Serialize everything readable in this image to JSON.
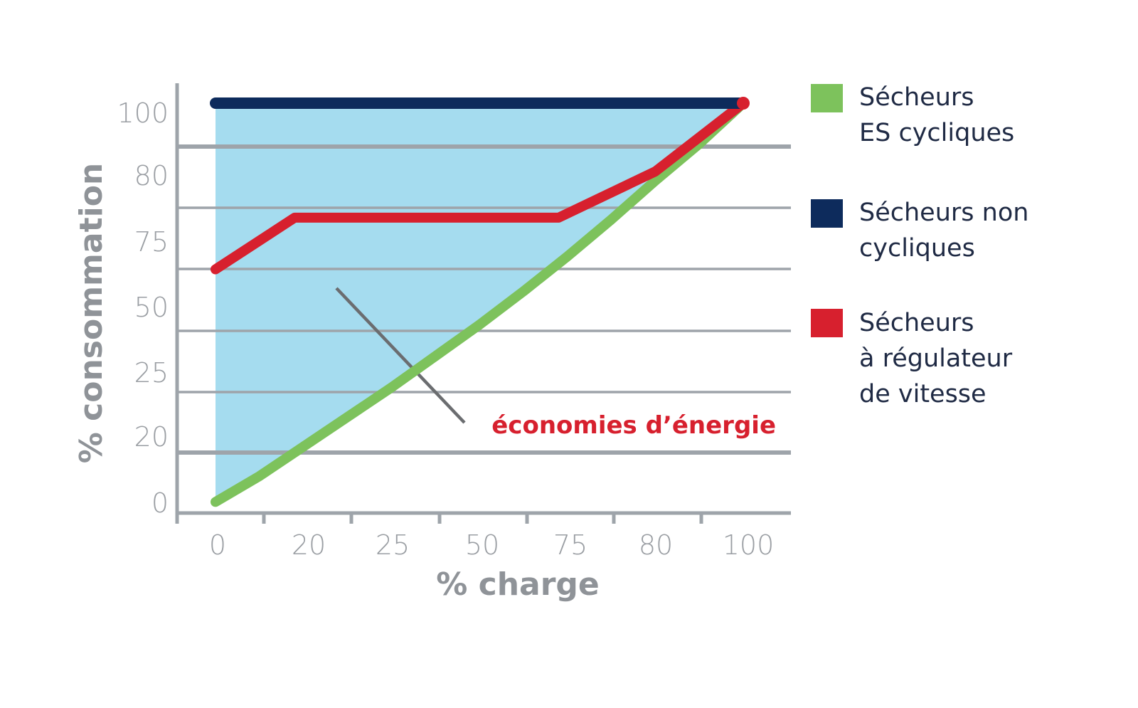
{
  "chart_data": {
    "type": "line",
    "xlabel": "% charge",
    "ylabel": "% consommation",
    "categories": [
      "0",
      "20",
      "25",
      "50",
      "75",
      "80",
      "100"
    ],
    "y_ticks": [
      "0",
      "20",
      "25",
      "50",
      "75",
      "80",
      "100"
    ],
    "grid": "horizontal",
    "legend_position": "right",
    "series": [
      {
        "name": "Sécheurs ES cycliques",
        "color": "#7dc25c",
        "x": [
          0,
          0.5,
          1,
          1.5,
          2,
          2.5,
          3,
          3.5,
          4,
          4.5,
          5,
          5.5,
          6
        ],
        "y": [
          0.3,
          1.0,
          1.8,
          2.6,
          3.4,
          4.25,
          5.1,
          6.0,
          6.95,
          7.95,
          9.0,
          10.0,
          11.1
        ]
      },
      {
        "name": "Sécheurs non cycliques",
        "color": "#0d2b5c",
        "x": [
          0,
          6
        ],
        "y": [
          11.1,
          11.1
        ]
      },
      {
        "name": "Sécheurs à régulateur de vitesse",
        "color": "#d7202e",
        "x": [
          0,
          0.9,
          3.9,
          5.0,
          6.0
        ],
        "y": [
          6.6,
          8.0,
          8.0,
          9.25,
          11.1
        ]
      }
    ],
    "shaded_area": {
      "label": "économies d'énergie",
      "label_color": "#d7202e",
      "fill": "#a5dcef",
      "between": [
        "Sécheurs non cycliques",
        "Sécheurs ES cycliques"
      ]
    },
    "annotations": [
      {
        "text": "économies d’énergie",
        "color": "#d7202e"
      }
    ]
  },
  "legend": [
    {
      "lines": [
        "Sécheurs",
        "ES cycliques"
      ],
      "color": "#7dc25c"
    },
    {
      "lines": [
        "Sécheurs non",
        "cycliques"
      ],
      "color": "#0d2b5c"
    },
    {
      "lines": [
        "Sécheurs",
        "à régulateur",
        "de vitesse"
      ],
      "color": "#d7202e"
    }
  ]
}
